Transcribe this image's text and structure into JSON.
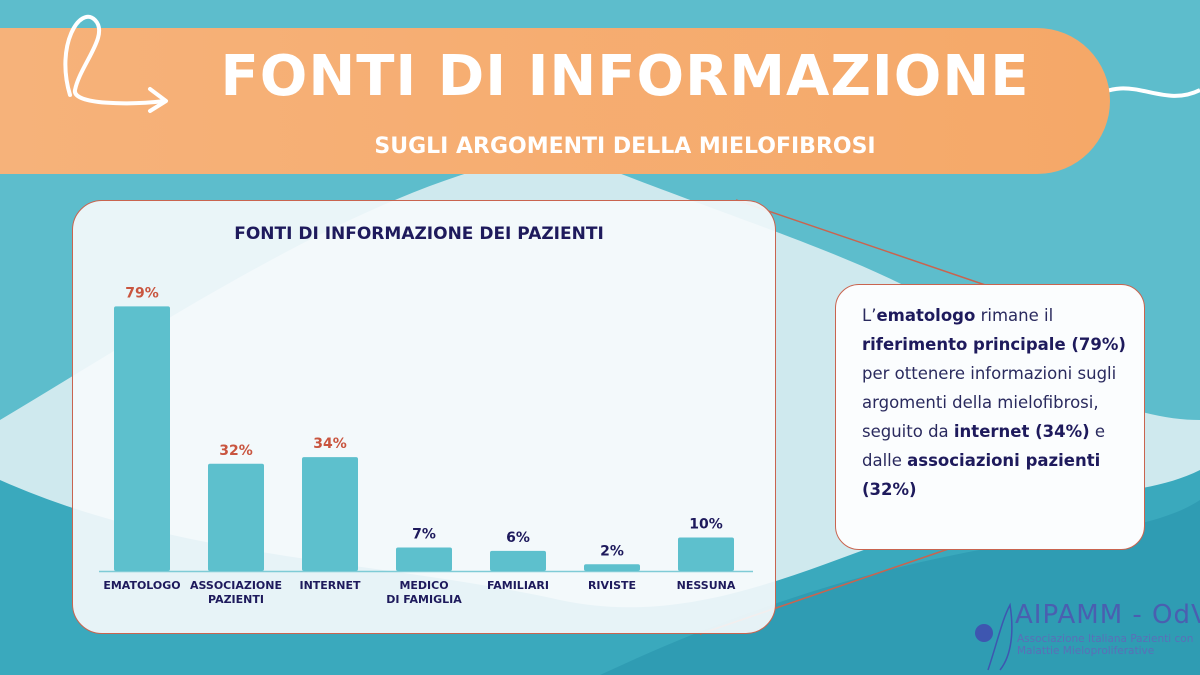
{
  "header": {
    "title": "FONTI DI INFORMAZIONE",
    "subtitle": "SUGLI ARGOMENTI DELLA MIELOFIBROSI"
  },
  "colors": {
    "bar": "#5dc0cd",
    "highlight_label": "#c9553f",
    "normal_label": "#1e1a5c",
    "banner": "#f6b07a"
  },
  "chart_data": {
    "type": "bar",
    "title": "FONTI DI INFORMAZIONE DEI PAZIENTI",
    "categories": [
      "EMATOLOGO",
      "ASSOCIAZIONE PAZIENTI",
      "INTERNET",
      "MEDICO DI FAMIGLIA",
      "FAMILIARI",
      "RIVISTE",
      "NESSUNA"
    ],
    "category_lines": [
      [
        "EMATOLOGO"
      ],
      [
        "ASSOCIAZIONE",
        "PAZIENTI"
      ],
      [
        "INTERNET"
      ],
      [
        "MEDICO",
        "DI FAMIGLIA"
      ],
      [
        "FAMILIARI"
      ],
      [
        "RIVISTE"
      ],
      [
        "NESSUNA"
      ]
    ],
    "values": [
      79,
      32,
      34,
      7,
      6,
      2,
      10
    ],
    "value_labels": [
      "79%",
      "32%",
      "34%",
      "7%",
      "6%",
      "2%",
      "10%"
    ],
    "highlighted": [
      true,
      true,
      true,
      false,
      false,
      false,
      false
    ],
    "ylim": [
      0,
      80
    ],
    "grid": false,
    "legend": "none"
  },
  "note": {
    "p1": "L’",
    "b1": "ematologo",
    "p2": " rimane il ",
    "b2": "riferimento principale (79%)",
    "p3": " per ottenere informazioni sugli argomenti della mielofibrosi, seguito da ",
    "b3": "internet (34%)",
    "p4": " e dalle ",
    "b4": "associazioni pazienti (32%)"
  },
  "logo": {
    "name": "AIPAMM - OdV",
    "subtitle": "Associazione Italiana Pazienti con Malattie Mieloproliferative"
  }
}
